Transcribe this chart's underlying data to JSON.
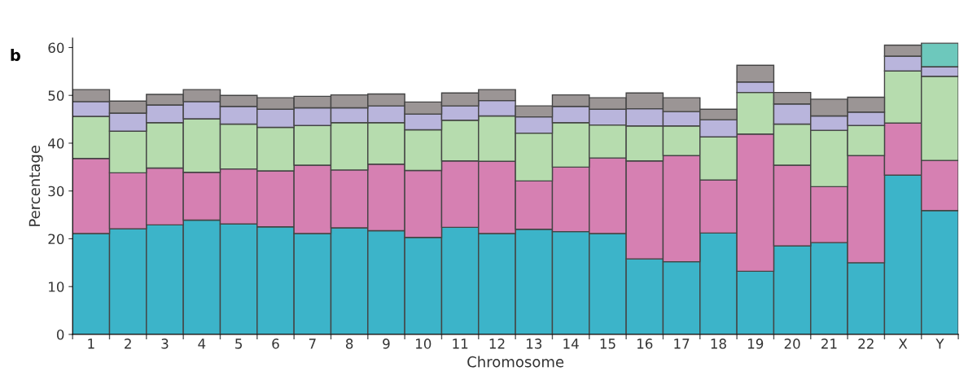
{
  "chart_data": {
    "type": "bar",
    "stacked": true,
    "xlabel": "Chromosome",
    "ylabel": "Percentage",
    "annotations": [
      "b"
    ],
    "categories": [
      "1",
      "2",
      "3",
      "4",
      "5",
      "6",
      "7",
      "8",
      "9",
      "10",
      "11",
      "12",
      "13",
      "14",
      "15",
      "16",
      "17",
      "18",
      "19",
      "20",
      "21",
      "22",
      "X",
      "Y"
    ],
    "ylim": [
      0,
      62
    ],
    "yticks": [
      0,
      10,
      20,
      30,
      40,
      50,
      60
    ],
    "grid": false,
    "legend": false,
    "series": [
      {
        "color": "#3cb4c9",
        "values": [
          21.1,
          22.1,
          22.9,
          23.9,
          23.1,
          22.5,
          21.1,
          22.3,
          21.7,
          20.3,
          22.4,
          21.1,
          22.0,
          21.5,
          21.1,
          15.8,
          15.2,
          21.2,
          13.2,
          18.5,
          19.2,
          15.0,
          33.3,
          25.9
        ]
      },
      {
        "color": "#d680b2",
        "values": [
          15.7,
          11.7,
          11.9,
          10.0,
          11.5,
          11.7,
          14.3,
          12.1,
          13.9,
          14.0,
          13.9,
          15.1,
          10.1,
          13.5,
          15.8,
          20.5,
          22.2,
          11.1,
          28.7,
          16.9,
          11.7,
          22.4,
          10.9,
          10.5
        ]
      },
      {
        "color": "#b6dcae",
        "values": [
          8.8,
          8.7,
          9.5,
          11.2,
          9.4,
          9.1,
          8.3,
          9.9,
          8.7,
          8.5,
          8.5,
          9.5,
          10.0,
          9.3,
          6.9,
          7.3,
          6.2,
          9.0,
          8.7,
          8.6,
          11.8,
          6.3,
          10.9,
          17.6
        ]
      },
      {
        "color": "#b9b5dc",
        "values": [
          3.1,
          3.8,
          3.7,
          3.6,
          3.7,
          3.8,
          3.7,
          3.1,
          3.5,
          3.3,
          3.0,
          3.2,
          3.4,
          3.4,
          3.3,
          3.6,
          3.0,
          3.6,
          2.2,
          4.2,
          3.0,
          2.8,
          3.1,
          2.0
        ]
      },
      {
        "colors": [
          "#9b9595",
          "#9b9595",
          "#9b9595",
          "#9b9595",
          "#9b9595",
          "#9b9595",
          "#9b9595",
          "#9b9595",
          "#9b9595",
          "#9b9595",
          "#9b9595",
          "#9b9595",
          "#9b9595",
          "#9b9595",
          "#9b9595",
          "#9b9595",
          "#9b9595",
          "#9b9595",
          "#9b9595",
          "#9b9595",
          "#9b9595",
          "#9b9595",
          "#9b9595",
          "#6dc8bc"
        ],
        "values": [
          2.5,
          2.5,
          2.2,
          2.5,
          2.3,
          2.4,
          2.4,
          2.7,
          2.5,
          2.5,
          2.7,
          2.3,
          2.3,
          2.4,
          2.4,
          3.3,
          2.9,
          2.2,
          3.5,
          2.4,
          3.5,
          3.1,
          2.3,
          4.9
        ]
      }
    ]
  }
}
